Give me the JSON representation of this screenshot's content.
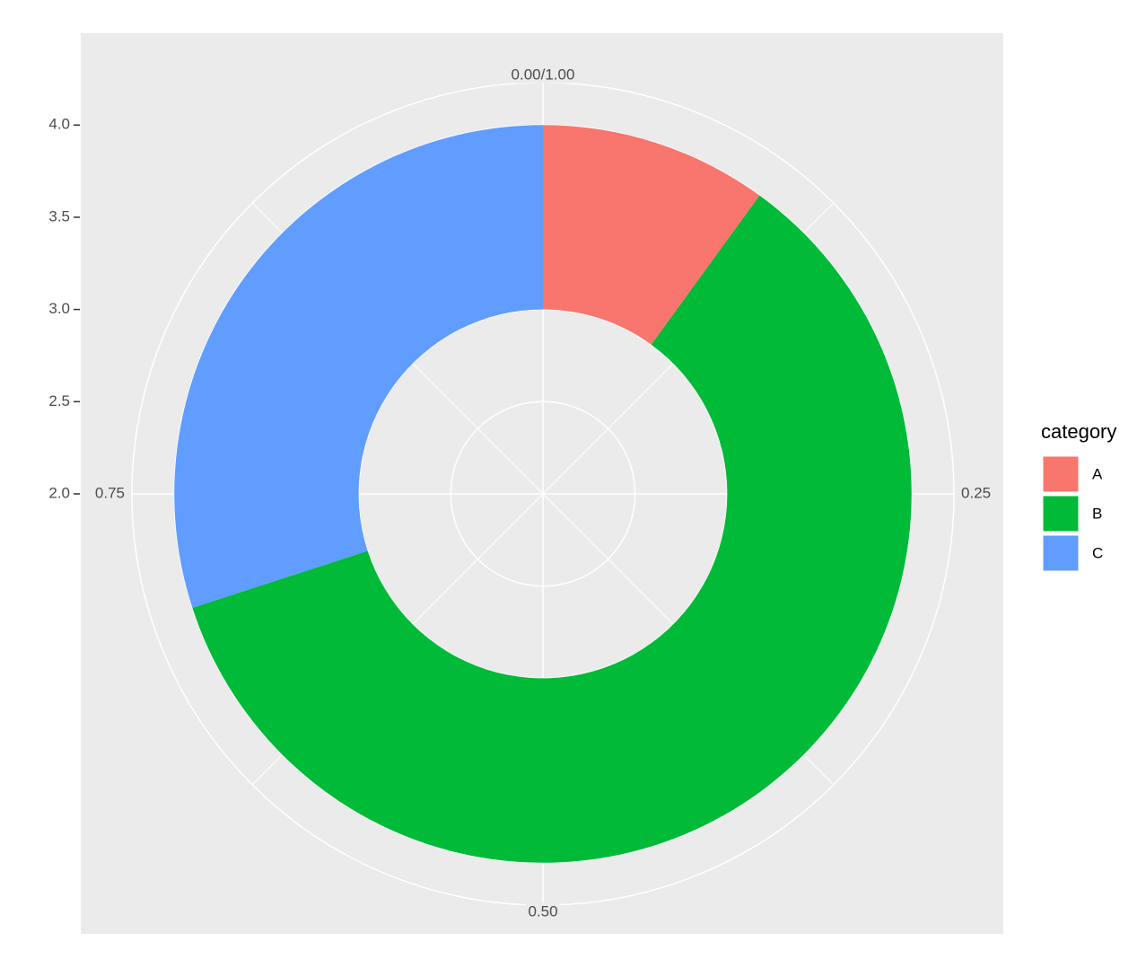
{
  "chart_data": {
    "type": "donut",
    "categories": [
      "A",
      "B",
      "C"
    ],
    "values": [
      0.1,
      0.6,
      0.3
    ],
    "colors": [
      "#F8766D",
      "#00BA38",
      "#619CFF"
    ],
    "legend_title": "category",
    "legend_position": "right",
    "ring": [
      3,
      4
    ],
    "rlim": [
      2,
      4.23
    ],
    "rticks": [
      {
        "value": 2,
        "label": "2.0"
      },
      2.5,
      {
        "value": 3,
        "label": "3.0"
      },
      3.5,
      {
        "value": 4,
        "label": "4.0"
      }
    ],
    "thetalim": [
      0,
      1
    ],
    "thetaticks": [
      {
        "value": 0,
        "label": "0.00/1.00"
      },
      0.25,
      {
        "value": 0.5,
        "label": "0.50"
      },
      0.75
    ],
    "theta_minor_ticks": [
      0.125,
      0.375,
      0.625,
      0.875
    ],
    "grid": true
  }
}
